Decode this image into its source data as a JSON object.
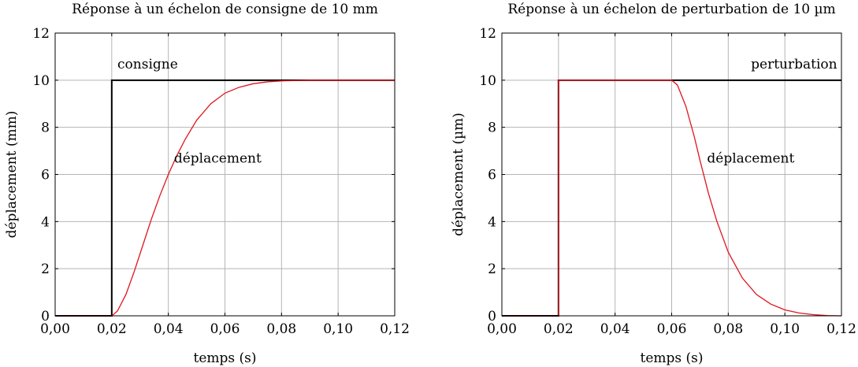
{
  "chart_data": [
    {
      "type": "line",
      "title": "Réponse à un échelon de consigne de 10 mm",
      "xlabel": "temps (s)",
      "ylabel": "déplacement (mm)",
      "xlim": [
        0,
        0.12
      ],
      "ylim": [
        0,
        12
      ],
      "x_ticks": [
        0,
        0.02,
        0.04,
        0.06,
        0.08,
        0.1,
        0.12
      ],
      "x_tick_labels": [
        "0,00",
        "0,02",
        "0,04",
        "0,06",
        "0,08",
        "0,10",
        "0,12"
      ],
      "y_ticks": [
        0,
        2,
        4,
        6,
        8,
        10,
        12
      ],
      "y_tick_labels": [
        "0",
        "2",
        "4",
        "6",
        "8",
        "10",
        "12"
      ],
      "grid": true,
      "series": [
        {
          "name": "consigne",
          "color": "#000000",
          "x": [
            0,
            0.02,
            0.02,
            0.12
          ],
          "y": [
            0,
            0,
            10,
            10
          ]
        },
        {
          "name": "déplacement",
          "color": "#e0141e",
          "x": [
            0,
            0.02,
            0.022,
            0.025,
            0.028,
            0.031,
            0.034,
            0.037,
            0.04,
            0.043,
            0.046,
            0.05,
            0.055,
            0.06,
            0.065,
            0.07,
            0.075,
            0.08,
            0.09,
            0.1,
            0.12
          ],
          "y": [
            0,
            0,
            0.2,
            0.9,
            1.9,
            3.0,
            4.1,
            5.1,
            6.0,
            6.8,
            7.5,
            8.3,
            9.0,
            9.45,
            9.7,
            9.85,
            9.93,
            9.97,
            10,
            10,
            10
          ]
        }
      ],
      "annotations": [
        {
          "text": "consigne",
          "x": 0.022,
          "y": 10.5
        },
        {
          "text": "déplacement",
          "x": 0.042,
          "y": 6.5
        }
      ]
    },
    {
      "type": "line",
      "title": "Réponse à un échelon de perturbation de 10 µm",
      "xlabel": "temps (s)",
      "ylabel": "déplacement (µm)",
      "xlim": [
        0,
        0.12
      ],
      "ylim": [
        0,
        12
      ],
      "x_ticks": [
        0,
        0.02,
        0.04,
        0.06,
        0.08,
        0.1,
        0.12
      ],
      "x_tick_labels": [
        "0,00",
        "0,02",
        "0,04",
        "0,06",
        "0,08",
        "0,10",
        "0,12"
      ],
      "y_ticks": [
        0,
        2,
        4,
        6,
        8,
        10,
        12
      ],
      "y_tick_labels": [
        "0",
        "2",
        "4",
        "6",
        "8",
        "10",
        "12"
      ],
      "grid": true,
      "series": [
        {
          "name": "perturbation",
          "color": "#000000",
          "x": [
            0,
            0.02,
            0.02,
            0.12
          ],
          "y": [
            0,
            0,
            10,
            10
          ]
        },
        {
          "name": "déplacement",
          "color": "#e0141e",
          "x": [
            0,
            0.02,
            0.02,
            0.06,
            0.062,
            0.065,
            0.068,
            0.07,
            0.073,
            0.076,
            0.08,
            0.085,
            0.09,
            0.095,
            0.1,
            0.105,
            0.11,
            0.115,
            0.12
          ],
          "y": [
            0,
            0,
            10,
            10,
            9.8,
            8.9,
            7.6,
            6.6,
            5.2,
            4.0,
            2.7,
            1.6,
            0.9,
            0.5,
            0.25,
            0.12,
            0.05,
            0.01,
            0
          ]
        }
      ],
      "annotations": [
        {
          "text": "perturbation",
          "x": 0.1185,
          "y": 10.5,
          "anchor": "end"
        },
        {
          "text": "déplacement",
          "x": 0.0725,
          "y": 6.5
        }
      ]
    }
  ]
}
